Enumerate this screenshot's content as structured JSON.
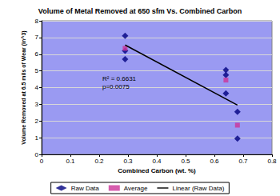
{
  "chart_data": {
    "type": "scatter",
    "title": "Volume of Metal Removed at 650 sfm Vs. Combined Carbon",
    "x_label": "Combined Carbon (wt. %)",
    "y_label": "Volume Removed at 6.5 mils of Wear (in^3)",
    "annotations": [
      "R² = 0.6631",
      "p=0.0075"
    ],
    "series": [
      {
        "name": "Raw Data",
        "type": "scatter",
        "marker": "diamond",
        "color": "#000080",
        "x": [
          0.29,
          0.29,
          0.29,
          0.64,
          0.64,
          0.64,
          0.68,
          0.68
        ],
        "values": [
          7.1,
          6.2,
          5.7,
          5.05,
          4.75,
          3.65,
          2.55,
          0.95
        ]
      },
      {
        "name": "Average",
        "type": "scatter",
        "marker": "square",
        "color": "#cc3399",
        "x": [
          0.29,
          0.64,
          0.68
        ],
        "values": [
          6.35,
          4.45,
          1.75
        ]
      },
      {
        "name": "Linear (Raw Data)",
        "type": "line",
        "line_style": "solid",
        "color": "#000000",
        "x": [
          0.29,
          0.68
        ],
        "values": [
          6.55,
          2.95
        ]
      }
    ],
    "xlim": [
      0,
      0.8
    ],
    "xticks": [
      0,
      0.1,
      0.2,
      0.3,
      0.4,
      0.5,
      0.6,
      0.7,
      0.8
    ],
    "ylim": [
      0,
      8
    ],
    "yticks": [
      0,
      1,
      2,
      3,
      4,
      5,
      6,
      7,
      8
    ],
    "grid": true,
    "legend": "bottom"
  }
}
